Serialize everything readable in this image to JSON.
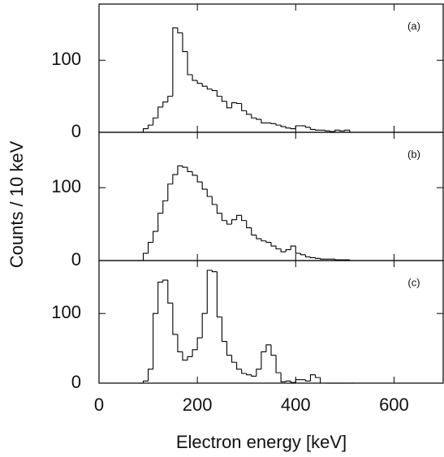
{
  "chart_data": [
    {
      "type": "histogram",
      "label": "(a)",
      "xlim": [
        0,
        700
      ],
      "xticks": [
        0,
        200,
        400,
        600
      ],
      "ylim": [
        0,
        178
      ],
      "yticks": [
        0,
        100
      ],
      "bins": [
        80,
        90,
        100,
        110,
        120,
        130,
        140,
        150,
        160,
        170,
        180,
        190,
        200,
        210,
        220,
        230,
        240,
        250,
        260,
        270,
        280,
        290,
        300,
        310,
        320,
        330,
        340,
        350,
        360,
        370,
        380,
        390,
        400,
        410,
        420,
        430,
        440,
        450,
        460,
        470,
        480,
        490,
        500,
        510,
        520
      ],
      "values": [
        0,
        5,
        10,
        20,
        35,
        42,
        50,
        145,
        138,
        112,
        80,
        72,
        68,
        64,
        60,
        58,
        50,
        43,
        34,
        41,
        40,
        30,
        25,
        20,
        18,
        13,
        13,
        12,
        10,
        8,
        6,
        5,
        9,
        9,
        7,
        4,
        3,
        3,
        2,
        1,
        3,
        2,
        3,
        0
      ]
    },
    {
      "type": "histogram",
      "label": "(b)",
      "ylabel": "Counts / 10 keV",
      "xlim": [
        0,
        700
      ],
      "xticks": [
        0,
        200,
        400,
        600
      ],
      "ylim": [
        0,
        176
      ],
      "yticks": [
        0,
        100
      ],
      "bins": [
        80,
        90,
        100,
        110,
        120,
        130,
        140,
        150,
        160,
        170,
        180,
        190,
        200,
        210,
        220,
        230,
        240,
        250,
        260,
        270,
        280,
        290,
        300,
        310,
        320,
        330,
        340,
        350,
        360,
        370,
        380,
        390,
        400,
        410,
        420,
        430,
        440,
        450,
        460,
        470,
        480,
        490,
        500,
        510,
        520
      ],
      "values": [
        0,
        10,
        25,
        40,
        65,
        82,
        105,
        118,
        130,
        128,
        122,
        117,
        108,
        98,
        88,
        77,
        65,
        55,
        50,
        56,
        62,
        55,
        45,
        35,
        30,
        27,
        25,
        20,
        16,
        12,
        15,
        20,
        10,
        8,
        5,
        4,
        3,
        2,
        2,
        2,
        1,
        1,
        1,
        0
      ]
    },
    {
      "type": "histogram",
      "label": "(c)",
      "xlabel": "Electron energy [keV]",
      "xlim": [
        0,
        700
      ],
      "xticks": [
        0,
        200,
        400,
        600
      ],
      "ylim": [
        0,
        176
      ],
      "yticks": [
        0,
        100
      ],
      "bins": [
        80,
        90,
        100,
        110,
        120,
        130,
        140,
        150,
        160,
        170,
        180,
        190,
        200,
        210,
        220,
        230,
        240,
        250,
        260,
        270,
        280,
        290,
        300,
        310,
        320,
        330,
        340,
        350,
        360,
        370,
        380,
        390,
        400,
        410,
        420,
        430,
        440,
        450,
        460,
        470,
        480,
        490,
        500,
        510,
        520
      ],
      "values": [
        0,
        3,
        20,
        100,
        145,
        148,
        115,
        70,
        45,
        33,
        38,
        48,
        65,
        100,
        162,
        160,
        95,
        60,
        40,
        30,
        20,
        14,
        12,
        10,
        20,
        45,
        55,
        40,
        15,
        2,
        3,
        1,
        5,
        5,
        3,
        12,
        8,
        0,
        0,
        0,
        0,
        0,
        0,
        0
      ]
    }
  ]
}
